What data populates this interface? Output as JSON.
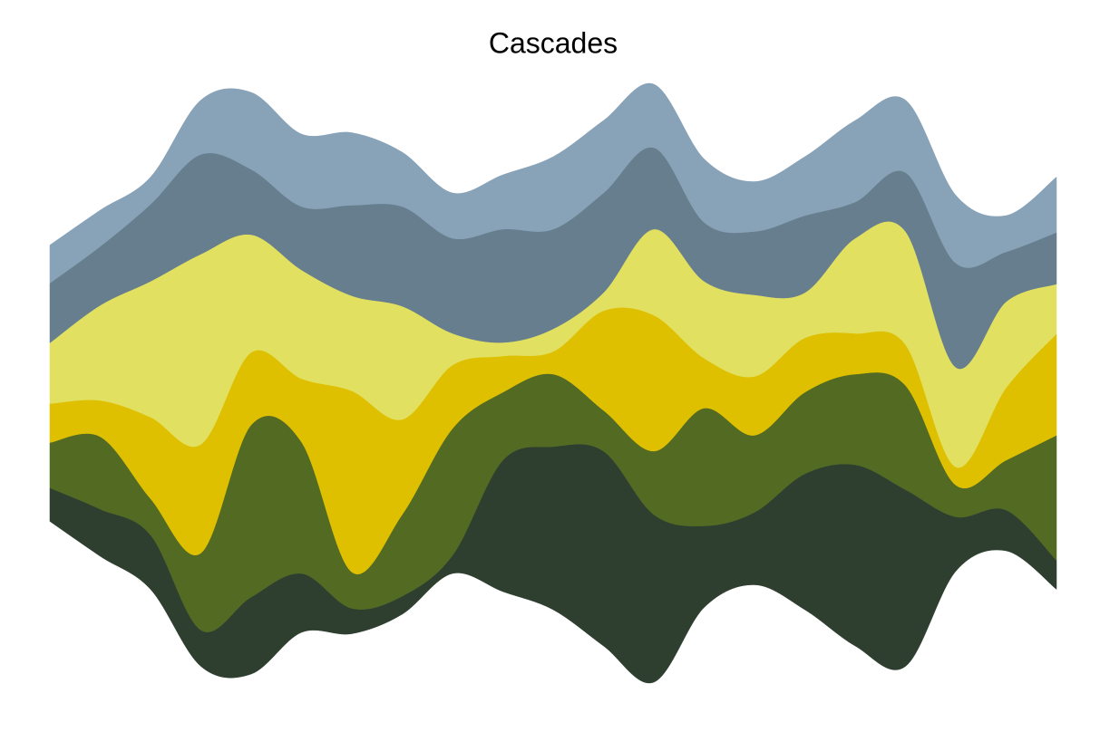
{
  "chart_data": {
    "type": "streamgraph",
    "title": "Cascades",
    "x": [
      0,
      1,
      2,
      3,
      4,
      5,
      6,
      7,
      8,
      9,
      10,
      11,
      12,
      13,
      14,
      15,
      16,
      17,
      18,
      19,
      20
    ],
    "xlim": [
      0,
      20
    ],
    "series": [
      {
        "color": "#2e3f30",
        "values": [
          37,
          52,
          60,
          40,
          85,
          65,
          28,
          20,
          20,
          145,
          180,
          215,
          185,
          90,
          80,
          150,
          200,
          195,
          60,
          45,
          32
        ]
      },
      {
        "color": "#536a23",
        "values": [
          50,
          80,
          40,
          85,
          190,
          145,
          40,
          90,
          140,
          75,
          80,
          45,
          70,
          130,
          85,
          90,
          100,
          115,
          35,
          55,
          138
        ]
      },
      {
        "color": "#dfc000",
        "values": [
          43,
          40,
          90,
          120,
          80,
          70,
          200,
          105,
          70,
          40,
          25,
          110,
          150,
          55,
          65,
          60,
          45,
          45,
          20,
          80,
          112
        ]
      },
      {
        "color": "#e1e060",
        "values": [
          67,
          105,
          150,
          210,
          130,
          120,
          105,
          125,
          35,
          15,
          25,
          20,
          95,
          85,
          90,
          50,
          105,
          125,
          110,
          95,
          55
        ]
      },
      {
        "color": "#677e8e",
        "values": [
          66,
          65,
          85,
          110,
          72,
          70,
          100,
          110,
          105,
          125,
          110,
          110,
          90,
          65,
          70,
          85,
          40,
          65,
          115,
          55,
          57
        ]
      },
      {
        "color": "#88a2b8",
        "values": [
          42,
          40,
          30,
          60,
          85,
          80,
          80,
          60,
          50,
          60,
          80,
          80,
          70,
          70,
          55,
          65,
          90,
          80,
          75,
          40,
          61
        ]
      }
    ]
  }
}
